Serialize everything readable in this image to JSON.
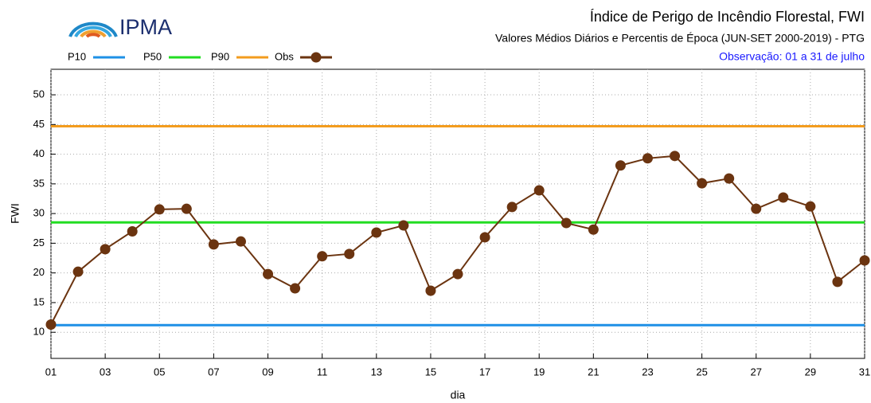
{
  "logo": "IPMA",
  "chart_data": {
    "type": "line",
    "title": "Índice de Perigo de Incêndio Florestal, FWI",
    "subtitle": "Valores Médios Diários e Percentis de Época (JUN-SET 2000-2019) - PTG",
    "note": "Observação: 01 a 31 de julho",
    "x_label": "dia",
    "y_label": "FWI",
    "x": [
      1,
      2,
      3,
      4,
      5,
      6,
      7,
      8,
      9,
      10,
      11,
      12,
      13,
      14,
      15,
      16,
      17,
      18,
      19,
      20,
      21,
      22,
      23,
      24,
      25,
      26,
      27,
      28,
      29,
      30,
      31
    ],
    "xlim": [
      1,
      31
    ],
    "xticks": [
      {
        "value": 1,
        "label": "01"
      },
      {
        "value": 3,
        "label": "03"
      },
      {
        "value": 5,
        "label": "05"
      },
      {
        "value": 7,
        "label": "07"
      },
      {
        "value": 9,
        "label": "09"
      },
      11,
      13,
      15,
      17,
      19,
      21,
      23,
      25,
      27,
      29,
      31
    ],
    "ylim": [
      5.6,
      54.3
    ],
    "yticks": [
      10,
      15,
      20,
      25,
      30,
      35,
      40,
      45,
      50
    ],
    "grid": true,
    "series": [
      {
        "name": "P10",
        "color": "#1e90e6",
        "marker": false,
        "values": [
          11.2,
          11.2,
          11.2,
          11.2,
          11.2,
          11.2,
          11.2,
          11.2,
          11.2,
          11.2,
          11.2,
          11.2,
          11.2,
          11.2,
          11.2,
          11.2,
          11.2,
          11.2,
          11.2,
          11.2,
          11.2,
          11.2,
          11.2,
          11.2,
          11.2,
          11.2,
          11.2,
          11.2,
          11.2,
          11.2,
          11.2
        ]
      },
      {
        "name": "P50",
        "color": "#22dd22",
        "marker": false,
        "values": [
          28.5,
          28.5,
          28.5,
          28.5,
          28.5,
          28.5,
          28.5,
          28.5,
          28.5,
          28.5,
          28.5,
          28.5,
          28.5,
          28.5,
          28.5,
          28.5,
          28.5,
          28.5,
          28.5,
          28.5,
          28.5,
          28.5,
          28.5,
          28.5,
          28.5,
          28.5,
          28.5,
          28.5,
          28.5,
          28.5,
          28.5
        ]
      },
      {
        "name": "P90",
        "color": "#f39c1e",
        "marker": false,
        "values": [
          44.7,
          44.7,
          44.7,
          44.7,
          44.7,
          44.7,
          44.7,
          44.7,
          44.7,
          44.7,
          44.7,
          44.7,
          44.7,
          44.7,
          44.7,
          44.7,
          44.7,
          44.7,
          44.7,
          44.7,
          44.7,
          44.7,
          44.7,
          44.7,
          44.7,
          44.7,
          44.7,
          44.7,
          44.7,
          44.7,
          44.7
        ]
      },
      {
        "name": "Obs",
        "color": "#6b3410",
        "marker": true,
        "values": [
          11.3,
          20.2,
          24.0,
          27.0,
          30.7,
          30.8,
          24.8,
          25.3,
          19.8,
          17.4,
          22.8,
          23.2,
          26.8,
          28.0,
          17.0,
          19.8,
          26.0,
          31.1,
          33.9,
          28.4,
          27.3,
          38.1,
          39.3,
          39.7,
          35.1,
          35.9,
          30.8,
          32.7,
          31.2,
          18.5,
          22.1
        ]
      }
    ]
  }
}
